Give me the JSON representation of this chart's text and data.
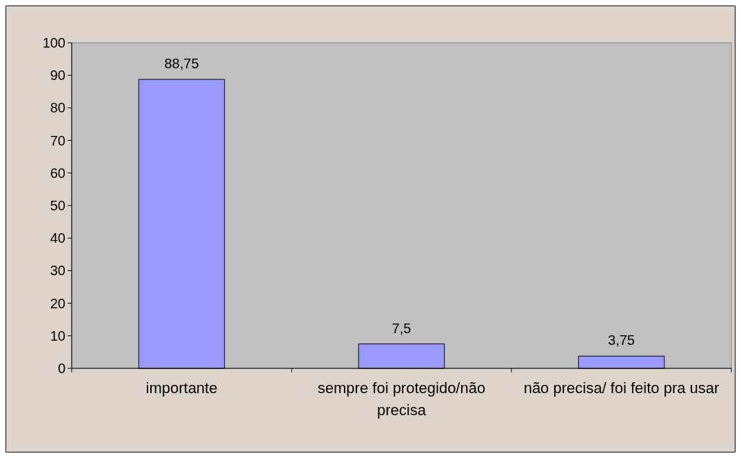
{
  "chart_data": {
    "type": "bar",
    "categories": [
      "importante",
      "sempre foi protegido/não precisa",
      "não precisa/ foi feito pra usar"
    ],
    "values": [
      88.75,
      7.5,
      3.75
    ],
    "value_labels": [
      "88,75",
      "7,5",
      "3,75"
    ],
    "color": "#9999ff",
    "ylim": [
      0,
      100
    ],
    "yticks": [
      0,
      10,
      20,
      30,
      40,
      50,
      60,
      70,
      80,
      90,
      100
    ],
    "grid": false
  }
}
